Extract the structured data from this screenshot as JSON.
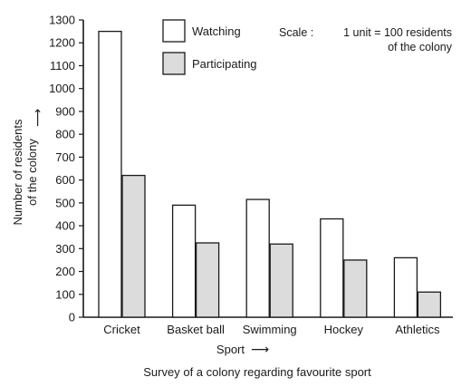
{
  "chart_data": {
    "type": "bar",
    "categories": [
      "Cricket",
      "Basket ball",
      "Swimming",
      "Hockey",
      "Athletics"
    ],
    "series": [
      {
        "name": "Watching",
        "values": [
          1250,
          490,
          515,
          430,
          260
        ],
        "color": "#ffffff"
      },
      {
        "name": "Participating",
        "values": [
          620,
          325,
          320,
          250,
          110
        ],
        "color": "#dcdcdc"
      }
    ],
    "ylim": [
      0,
      1300
    ],
    "yticks": [
      0,
      100,
      200,
      300,
      400,
      500,
      600,
      700,
      800,
      900,
      1000,
      1100,
      1200,
      1300
    ],
    "xlabel": "Sport",
    "ylabel_line1": "Number of residents",
    "ylabel_line2": "of the colony",
    "axis_arrow": "⟶",
    "scale_prefix": "Scale :",
    "scale_line1": "1 unit = 100 residents",
    "scale_line2": "of the colony",
    "caption": "Survey of a colony regarding favourite sport",
    "legend_position": "top-center",
    "grid": false
  }
}
